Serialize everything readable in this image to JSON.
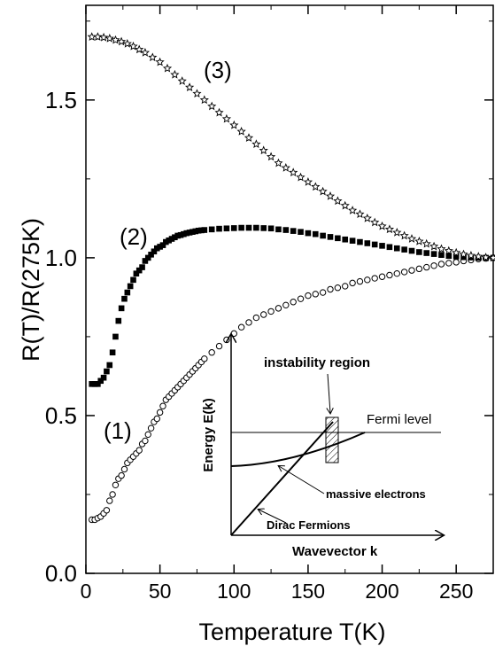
{
  "chart_data": {
    "type": "scatter",
    "xlabel": "Temperature T(K)",
    "ylabel": "R(T)/R(275K)",
    "xlim": [
      0,
      275
    ],
    "ylim": [
      0,
      1.8
    ],
    "x_ticks": [
      0,
      50,
      100,
      150,
      200,
      250
    ],
    "x_tick_labels": [
      "0",
      "50",
      "100",
      "150",
      "200",
      "250"
    ],
    "y_ticks": [
      0.0,
      0.5,
      1.0,
      1.5
    ],
    "y_tick_labels": [
      "0.0",
      "0.5",
      "1.0",
      "1.5"
    ],
    "grid": false,
    "series": [
      {
        "name": "(1)",
        "marker": "open-circle",
        "x": [
          4,
          6,
          8,
          10,
          12,
          14,
          16,
          18,
          20,
          22,
          24,
          26,
          28,
          30,
          32,
          34,
          36,
          38,
          40,
          42,
          44,
          46,
          48,
          50,
          52,
          54,
          56,
          58,
          60,
          62,
          64,
          66,
          68,
          70,
          72,
          74,
          76,
          78,
          80,
          85,
          90,
          95,
          100,
          105,
          110,
          115,
          120,
          125,
          130,
          135,
          140,
          145,
          150,
          155,
          160,
          165,
          170,
          175,
          180,
          185,
          190,
          195,
          200,
          205,
          210,
          215,
          220,
          225,
          230,
          235,
          240,
          245,
          250,
          255,
          260,
          265,
          270,
          275
        ],
        "y": [
          0.17,
          0.17,
          0.175,
          0.18,
          0.19,
          0.2,
          0.23,
          0.25,
          0.28,
          0.3,
          0.31,
          0.33,
          0.35,
          0.36,
          0.37,
          0.38,
          0.39,
          0.41,
          0.42,
          0.44,
          0.46,
          0.48,
          0.49,
          0.51,
          0.53,
          0.55,
          0.56,
          0.57,
          0.58,
          0.59,
          0.6,
          0.61,
          0.62,
          0.63,
          0.64,
          0.65,
          0.66,
          0.67,
          0.68,
          0.7,
          0.72,
          0.74,
          0.76,
          0.78,
          0.795,
          0.81,
          0.82,
          0.83,
          0.84,
          0.85,
          0.86,
          0.87,
          0.88,
          0.885,
          0.89,
          0.9,
          0.905,
          0.91,
          0.92,
          0.925,
          0.93,
          0.935,
          0.94,
          0.945,
          0.95,
          0.955,
          0.96,
          0.965,
          0.97,
          0.975,
          0.98,
          0.983,
          0.986,
          0.99,
          0.993,
          0.996,
          0.998,
          1.0
        ]
      },
      {
        "name": "(2)",
        "marker": "filled-square",
        "x": [
          4,
          6,
          8,
          10,
          12,
          14,
          16,
          18,
          20,
          22,
          24,
          26,
          28,
          30,
          32,
          34,
          36,
          38,
          40,
          42,
          44,
          46,
          48,
          50,
          52,
          54,
          56,
          58,
          60,
          62,
          64,
          66,
          68,
          70,
          72,
          74,
          76,
          78,
          80,
          85,
          90,
          95,
          100,
          105,
          110,
          115,
          120,
          125,
          130,
          135,
          140,
          145,
          150,
          155,
          160,
          165,
          170,
          175,
          180,
          185,
          190,
          195,
          200,
          205,
          210,
          215,
          220,
          225,
          230,
          235,
          240,
          245,
          250,
          255,
          260,
          265,
          270,
          275
        ],
        "y": [
          0.6,
          0.6,
          0.6,
          0.61,
          0.62,
          0.64,
          0.66,
          0.7,
          0.75,
          0.8,
          0.84,
          0.87,
          0.89,
          0.91,
          0.93,
          0.95,
          0.96,
          0.97,
          0.99,
          1.0,
          1.01,
          1.02,
          1.03,
          1.035,
          1.04,
          1.05,
          1.055,
          1.06,
          1.065,
          1.07,
          1.072,
          1.075,
          1.078,
          1.08,
          1.082,
          1.084,
          1.086,
          1.087,
          1.088,
          1.09,
          1.092,
          1.093,
          1.094,
          1.095,
          1.095,
          1.095,
          1.094,
          1.093,
          1.09,
          1.088,
          1.085,
          1.082,
          1.078,
          1.075,
          1.07,
          1.066,
          1.062,
          1.058,
          1.054,
          1.05,
          1.046,
          1.042,
          1.038,
          1.034,
          1.03,
          1.026,
          1.022,
          1.018,
          1.015,
          1.012,
          1.009,
          1.006,
          1.004,
          1.002,
          1.001,
          1.0,
          1.0,
          1.0
        ]
      },
      {
        "name": "(3)",
        "marker": "open-star",
        "x": [
          4,
          8,
          12,
          16,
          20,
          24,
          28,
          32,
          36,
          40,
          45,
          50,
          55,
          60,
          65,
          70,
          75,
          80,
          85,
          90,
          95,
          100,
          105,
          110,
          115,
          120,
          125,
          130,
          135,
          140,
          145,
          150,
          155,
          160,
          165,
          170,
          175,
          180,
          185,
          190,
          195,
          200,
          205,
          210,
          215,
          220,
          225,
          230,
          235,
          240,
          245,
          250,
          255,
          260,
          265,
          270,
          275
        ],
        "y": [
          1.7,
          1.7,
          1.698,
          1.695,
          1.69,
          1.685,
          1.678,
          1.67,
          1.66,
          1.65,
          1.635,
          1.62,
          1.6,
          1.58,
          1.56,
          1.54,
          1.52,
          1.5,
          1.48,
          1.46,
          1.44,
          1.42,
          1.4,
          1.38,
          1.36,
          1.34,
          1.32,
          1.3,
          1.285,
          1.27,
          1.255,
          1.24,
          1.225,
          1.21,
          1.195,
          1.18,
          1.165,
          1.15,
          1.138,
          1.125,
          1.112,
          1.1,
          1.09,
          1.08,
          1.07,
          1.06,
          1.052,
          1.044,
          1.036,
          1.028,
          1.022,
          1.016,
          1.011,
          1.007,
          1.004,
          1.001,
          1.0
        ]
      }
    ],
    "annotations": [
      "(1)",
      "(2)",
      "(3)"
    ],
    "inset": {
      "title": "instability region",
      "xlabel": "Wavevector k",
      "ylabel": "Energy E(k)",
      "labels": {
        "fermi": "Fermi level",
        "massive": "massive electrons",
        "dirac": "Dirac Fermions"
      }
    }
  }
}
